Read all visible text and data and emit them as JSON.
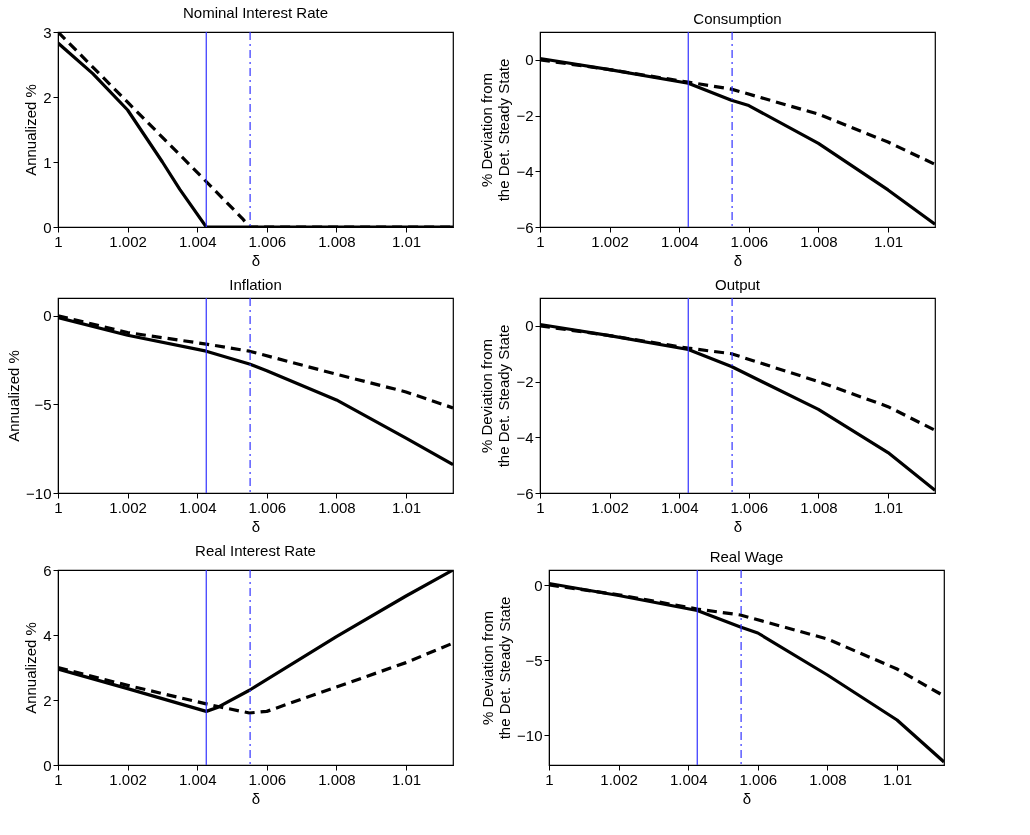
{
  "chart_data": [
    {
      "type": "line",
      "title": "Nominal Interest Rate",
      "xlabel": "δ",
      "ylabel": "Annualized %",
      "xlim": [
        1,
        1.01135
      ],
      "xticks": [
        1,
        1.002,
        1.004,
        1.006,
        1.008,
        1.01
      ],
      "ylim": [
        0,
        3
      ],
      "yticks": [
        0,
        1,
        2,
        3
      ],
      "grid": false,
      "series": [
        {
          "color": "#000000",
          "line_style": "solid",
          "x": [
            1,
            1.001,
            1.002,
            1.003,
            1.0035,
            1.00426,
            1.01135
          ],
          "values": [
            2.83,
            2.36,
            1.8,
            1.0,
            0.58,
            0,
            0
          ]
        },
        {
          "color": "#000000",
          "line_style": "dashed",
          "x": [
            1,
            1.002,
            1.004,
            1.0053,
            1.0055,
            1.01135
          ],
          "values": [
            3.0,
            1.92,
            0.84,
            0.13,
            0,
            0
          ]
        }
      ],
      "ref_lines": [
        {
          "axis": "x",
          "value": 1.00426,
          "color": "#3333ff",
          "line_style": "solid"
        },
        {
          "axis": "x",
          "value": 1.00552,
          "color": "#3333ff",
          "line_style": "dashed"
        }
      ]
    },
    {
      "type": "line",
      "title": "Consumption",
      "xlabel": "δ",
      "ylabel": "% Deviation from\nthe Det. Steady State",
      "xlim": [
        1,
        1.01135
      ],
      "xticks": [
        1,
        1.002,
        1.004,
        1.006,
        1.008,
        1.01
      ],
      "ylim": [
        -6,
        1
      ],
      "yticks": [
        -6,
        -4,
        -2,
        0
      ],
      "grid": false,
      "series": [
        {
          "color": "#000000",
          "line_style": "solid",
          "x": [
            1,
            1.002,
            1.00426,
            1.0055,
            1.006,
            1.008,
            1.01,
            1.01135
          ],
          "values": [
            0.05,
            -0.35,
            -0.84,
            -1.45,
            -1.64,
            -3.0,
            -4.67,
            -5.9
          ]
        },
        {
          "color": "#000000",
          "line_style": "dashed",
          "x": [
            1,
            1.002,
            1.00426,
            1.0055,
            1.008,
            1.01,
            1.01135
          ],
          "values": [
            0,
            -0.35,
            -0.8,
            -1.05,
            -1.95,
            -2.95,
            -3.75
          ]
        }
      ],
      "ref_lines": [
        {
          "axis": "x",
          "value": 1.00426,
          "color": "#3333ff",
          "line_style": "solid"
        },
        {
          "axis": "x",
          "value": 1.00552,
          "color": "#3333ff",
          "line_style": "dashed"
        }
      ]
    },
    {
      "type": "line",
      "title": "Inflation",
      "xlabel": "δ",
      "ylabel": "Annualized %",
      "xlim": [
        1,
        1.01135
      ],
      "xticks": [
        1,
        1.002,
        1.004,
        1.006,
        1.008,
        1.01
      ],
      "ylim": [
        -10,
        1
      ],
      "yticks": [
        -10,
        -5,
        0
      ],
      "grid": false,
      "series": [
        {
          "color": "#000000",
          "line_style": "solid",
          "x": [
            1,
            1.002,
            1.00426,
            1.0055,
            1.006,
            1.008,
            1.01,
            1.01135
          ],
          "values": [
            -0.1,
            -1.1,
            -2.0,
            -2.72,
            -3.1,
            -4.75,
            -6.9,
            -8.4
          ]
        },
        {
          "color": "#000000",
          "line_style": "dashed",
          "x": [
            1,
            1.002,
            1.00426,
            1.0055,
            1.008,
            1.01,
            1.01135
          ],
          "values": [
            0,
            -0.95,
            -1.6,
            -2.0,
            -3.3,
            -4.3,
            -5.2
          ]
        }
      ],
      "ref_lines": [
        {
          "axis": "x",
          "value": 1.00426,
          "color": "#3333ff",
          "line_style": "solid"
        },
        {
          "axis": "x",
          "value": 1.00552,
          "color": "#3333ff",
          "line_style": "dashed"
        }
      ]
    },
    {
      "type": "line",
      "title": "Output",
      "xlabel": "δ",
      "ylabel": "% Deviation from\nthe Det. Steady State",
      "xlim": [
        1,
        1.01135
      ],
      "xticks": [
        1,
        1.002,
        1.004,
        1.006,
        1.008,
        1.01
      ],
      "ylim": [
        -6,
        1
      ],
      "yticks": [
        -6,
        -4,
        -2,
        0
      ],
      "grid": false,
      "series": [
        {
          "color": "#000000",
          "line_style": "solid",
          "x": [
            1,
            1.002,
            1.00426,
            1.0055,
            1.008,
            1.01,
            1.01135
          ],
          "values": [
            0.05,
            -0.35,
            -0.85,
            -1.46,
            -3.0,
            -4.55,
            -5.9
          ]
        },
        {
          "color": "#000000",
          "line_style": "dashed",
          "x": [
            1,
            1.002,
            1.00426,
            1.0055,
            1.008,
            1.01,
            1.01135
          ],
          "values": [
            0,
            -0.35,
            -0.8,
            -1.0,
            -2.0,
            -2.9,
            -3.75
          ]
        }
      ],
      "ref_lines": [
        {
          "axis": "x",
          "value": 1.00426,
          "color": "#3333ff",
          "line_style": "solid"
        },
        {
          "axis": "x",
          "value": 1.00552,
          "color": "#3333ff",
          "line_style": "dashed"
        }
      ]
    },
    {
      "type": "line",
      "title": "Real Interest Rate",
      "xlabel": "δ",
      "ylabel": "Annualized %",
      "xlim": [
        1,
        1.01135
      ],
      "xticks": [
        1,
        1.002,
        1.004,
        1.006,
        1.008,
        1.01
      ],
      "ylim": [
        0,
        6
      ],
      "yticks": [
        0,
        2,
        4,
        6
      ],
      "grid": false,
      "series": [
        {
          "color": "#000000",
          "line_style": "solid",
          "x": [
            1,
            1.002,
            1.00426,
            1.0046,
            1.0055,
            1.008,
            1.01,
            1.01135
          ],
          "values": [
            2.95,
            2.35,
            1.65,
            1.78,
            2.3,
            3.95,
            5.2,
            6.0
          ]
        },
        {
          "color": "#000000",
          "line_style": "dashed",
          "x": [
            1,
            1.002,
            1.00426,
            1.0046,
            1.0055,
            1.006,
            1.008,
            1.01,
            1.01135
          ],
          "values": [
            3.0,
            2.45,
            1.88,
            1.8,
            1.6,
            1.65,
            2.4,
            3.15,
            3.75
          ]
        }
      ],
      "ref_lines": [
        {
          "axis": "x",
          "value": 1.00426,
          "color": "#3333ff",
          "line_style": "solid"
        },
        {
          "axis": "x",
          "value": 1.00552,
          "color": "#3333ff",
          "line_style": "dashed"
        }
      ]
    },
    {
      "type": "line",
      "title": "Real Wage",
      "xlabel": "δ",
      "ylabel": "% Deviation from\nthe Det. Steady State",
      "xlim": [
        1,
        1.01135
      ],
      "xticks": [
        1,
        1.002,
        1.004,
        1.006,
        1.008,
        1.01
      ],
      "ylim": [
        -12,
        1
      ],
      "yticks": [
        -10,
        -5,
        0
      ],
      "grid": false,
      "series": [
        {
          "color": "#000000",
          "line_style": "solid",
          "x": [
            1,
            1.002,
            1.00426,
            1.0055,
            1.006,
            1.008,
            1.01,
            1.01135
          ],
          "values": [
            0.1,
            -0.7,
            -1.7,
            -2.8,
            -3.2,
            -6.0,
            -9.0,
            -11.8
          ]
        },
        {
          "color": "#000000",
          "line_style": "dashed",
          "x": [
            1,
            1.002,
            1.00426,
            1.0055,
            1.008,
            1.01,
            1.0112,
            1.01135
          ],
          "values": [
            0,
            -0.65,
            -1.6,
            -2.0,
            -3.6,
            -5.6,
            -7.2,
            -7.4
          ]
        }
      ],
      "ref_lines": [
        {
          "axis": "x",
          "value": 1.00426,
          "color": "#3333ff",
          "line_style": "solid"
        },
        {
          "axis": "x",
          "value": 1.00552,
          "color": "#3333ff",
          "line_style": "dashed"
        }
      ]
    }
  ]
}
